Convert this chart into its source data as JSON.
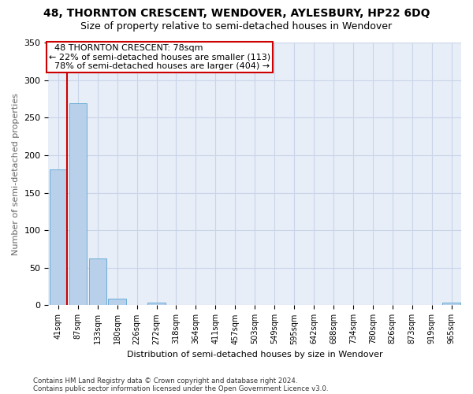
{
  "title": "48, THORNTON CRESCENT, WENDOVER, AYLESBURY, HP22 6DQ",
  "subtitle": "Size of property relative to semi-detached houses in Wendover",
  "xlabel": "Distribution of semi-detached houses by size in Wendover",
  "ylabel": "Number of semi-detached properties",
  "footnote1": "Contains HM Land Registry data © Crown copyright and database right 2024.",
  "footnote2": "Contains public sector information licensed under the Open Government Licence v3.0.",
  "categories": [
    "41sqm",
    "87sqm",
    "133sqm",
    "180sqm",
    "226sqm",
    "272sqm",
    "318sqm",
    "364sqm",
    "411sqm",
    "457sqm",
    "503sqm",
    "549sqm",
    "595sqm",
    "642sqm",
    "688sqm",
    "734sqm",
    "780sqm",
    "826sqm",
    "873sqm",
    "919sqm",
    "965sqm"
  ],
  "values": [
    181,
    269,
    62,
    9,
    0,
    4,
    0,
    0,
    0,
    0,
    0,
    0,
    0,
    0,
    0,
    0,
    0,
    0,
    0,
    0,
    4
  ],
  "bar_color": "#b8d0ea",
  "bar_edge_color": "#6aaed6",
  "grid_color": "#c8d4e8",
  "background_color": "#e8eef8",
  "property_label": "48 THORNTON CRESCENT: 78sqm",
  "pct_smaller": 22,
  "pct_larger": 78,
  "count_smaller": 113,
  "count_larger": 404,
  "annotation_box_color": "#cc0000",
  "vline_color": "#cc0000",
  "ylim": [
    0,
    350
  ],
  "yticks": [
    0,
    50,
    100,
    150,
    200,
    250,
    300,
    350
  ],
  "title_fontsize": 10,
  "subtitle_fontsize": 9,
  "ylabel_fontsize": 8,
  "xlabel_fontsize": 8,
  "tick_fontsize": 8,
  "annot_fontsize": 8
}
